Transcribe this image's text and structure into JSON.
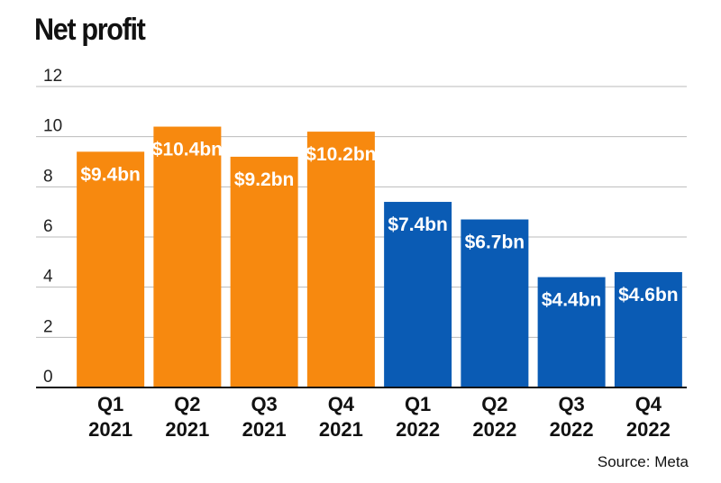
{
  "chart_data": {
    "type": "bar",
    "title": "Net profit",
    "source": "Source:  Meta",
    "categories": [
      [
        "Q1",
        "2021"
      ],
      [
        "Q2",
        "2021"
      ],
      [
        "Q3",
        "2021"
      ],
      [
        "Q4",
        "2021"
      ],
      [
        "Q1",
        "2022"
      ],
      [
        "Q2",
        "2022"
      ],
      [
        "Q3",
        "2022"
      ],
      [
        "Q4",
        "2022"
      ]
    ],
    "values": [
      9.4,
      10.4,
      9.2,
      10.2,
      7.4,
      6.7,
      4.4,
      4.6
    ],
    "data_labels": [
      "$9.4bn",
      "$10.4bn",
      "$9.2bn",
      "$10.2bn",
      "$7.4bn",
      "$6.7bn",
      "$4.4bn",
      "$4.6bn"
    ],
    "bar_colors": [
      "#f7890f",
      "#f7890f",
      "#f7890f",
      "#f7890f",
      "#0a5bb4",
      "#0a5bb4",
      "#0a5bb4",
      "#0a5bb4"
    ],
    "ylim": [
      0,
      12
    ],
    "yticks": [
      0,
      2,
      4,
      6,
      8,
      10,
      12
    ],
    "grid": true,
    "gridline_color": "#bbbbbb"
  }
}
